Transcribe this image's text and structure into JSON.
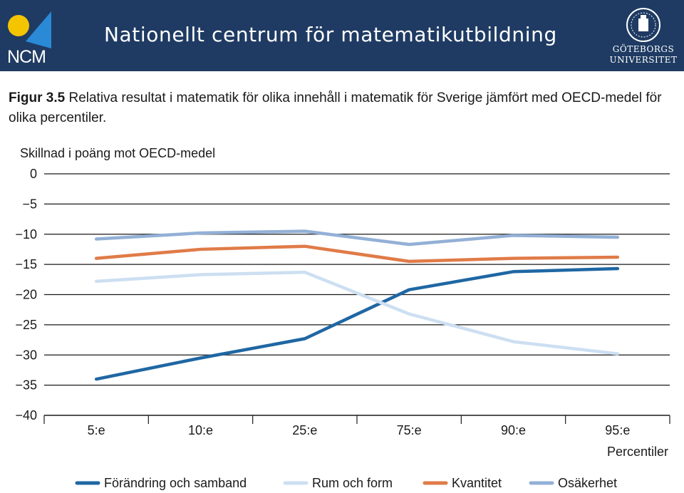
{
  "header": {
    "logo_text": "NCM",
    "title": "Nationellt centrum för matematikutbildning",
    "university_line1": "GÖTEBORGS",
    "university_line2": "UNIVERSITET"
  },
  "caption": {
    "label": "Figur 3.5",
    "text": " Relativa resultat i matematik för olika innehåll i matematik för Sverige jämfört med OECD-medel för olika percentiler."
  },
  "chart_data": {
    "type": "line",
    "ylabel": "Skillnad i poäng mot OECD-medel",
    "xlabel": "Percentiler",
    "categories": [
      "5:e",
      "10:e",
      "25:e",
      "75:e",
      "90:e",
      "95:e"
    ],
    "ylim": [
      -40,
      0
    ],
    "yticks": [
      0,
      -5,
      -10,
      -15,
      -20,
      -25,
      -30,
      -35,
      -40
    ],
    "grid": true,
    "legend_position": "bottom",
    "series": [
      {
        "name": "Förändring och samband",
        "color": "#1f67a3",
        "values": [
          -34,
          -30.5,
          -27.3,
          -19.2,
          -16.2,
          -15.7
        ]
      },
      {
        "name": "Rum och form",
        "color": "#cddff1",
        "values": [
          -17.8,
          -16.7,
          -16.3,
          -23.2,
          -27.8,
          -29.8
        ]
      },
      {
        "name": "Kvantitet",
        "color": "#e07b48",
        "values": [
          -14,
          -12.5,
          -12,
          -14.5,
          -14,
          -13.8
        ]
      },
      {
        "name": "Osäkerhet",
        "color": "#93b0d6",
        "values": [
          -10.8,
          -9.8,
          -9.5,
          -11.7,
          -10.2,
          -10.5
        ]
      }
    ]
  }
}
